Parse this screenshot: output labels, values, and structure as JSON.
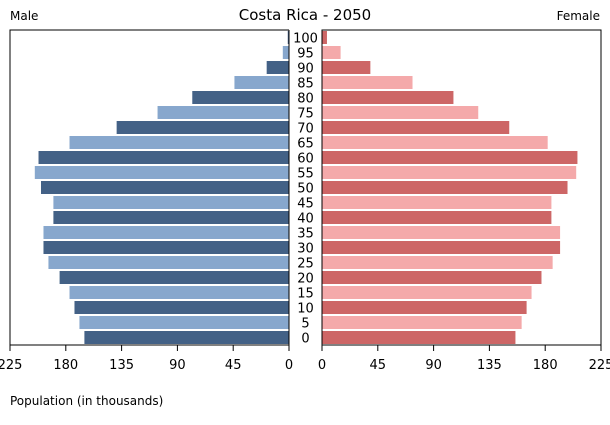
{
  "chart_data": {
    "type": "bar",
    "orientation": "horizontal-pyramid",
    "title": "Costa Rica - 2050",
    "left_label": "Male",
    "right_label": "Female",
    "xlabel": "Population (in thousands)",
    "xlim": [
      0,
      225
    ],
    "xticks": [
      0,
      45,
      90,
      135,
      180,
      225
    ],
    "categories": [
      "100",
      "95",
      "90",
      "85",
      "80",
      "75",
      "70",
      "65",
      "60",
      "55",
      "50",
      "45",
      "40",
      "35",
      "30",
      "25",
      "20",
      "15",
      "10",
      "5",
      "0"
    ],
    "series": [
      {
        "name": "Male",
        "values": [
          1,
          5,
          18,
          44,
          78,
          106,
          139,
          177,
          202,
          205,
          200,
          190,
          190,
          198,
          198,
          194,
          185,
          177,
          173,
          169,
          165
        ]
      },
      {
        "name": "Female",
        "values": [
          4,
          15,
          39,
          73,
          106,
          126,
          151,
          182,
          206,
          205,
          198,
          185,
          185,
          192,
          192,
          186,
          177,
          169,
          165,
          161,
          156
        ]
      }
    ],
    "colors": {
      "male_dark": "#436186",
      "male_light": "#87a7cd",
      "female_dark": "#cd6666",
      "female_light": "#f4a9aa"
    },
    "grid": false
  }
}
